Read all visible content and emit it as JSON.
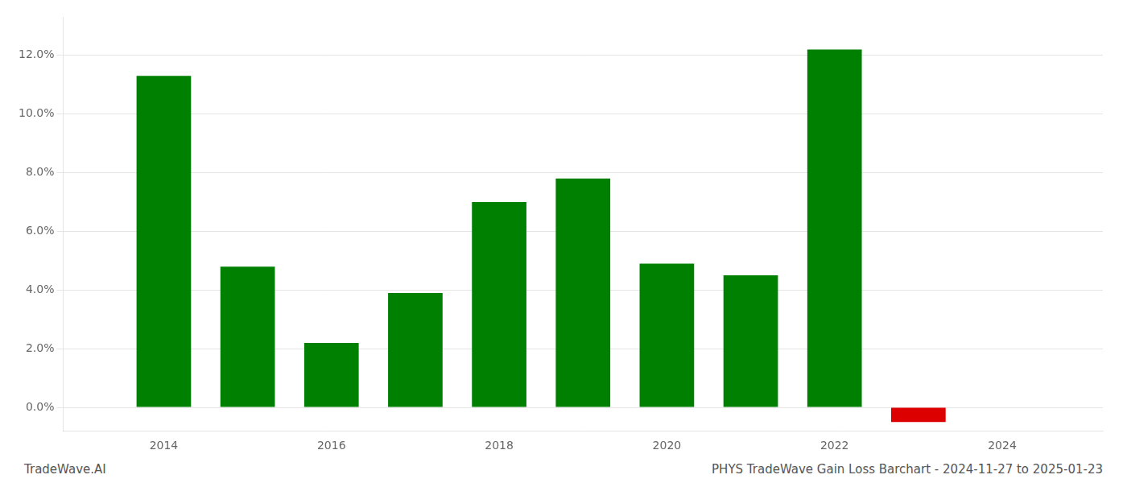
{
  "chart_data": {
    "type": "bar",
    "x": [
      2014,
      2015,
      2016,
      2017,
      2018,
      2019,
      2020,
      2021,
      2022,
      2023
    ],
    "values": [
      0.113,
      0.048,
      0.022,
      0.039,
      0.07,
      0.078,
      0.049,
      0.045,
      0.122,
      -0.005
    ],
    "colors": [
      "#008000",
      "#008000",
      "#008000",
      "#008000",
      "#008000",
      "#008000",
      "#008000",
      "#008000",
      "#008000",
      "#dd0000"
    ],
    "xlim": [
      2012.8,
      2025.2
    ],
    "xticks": [
      2014,
      2016,
      2018,
      2020,
      2022,
      2024
    ],
    "ylim": [
      -0.008,
      0.133
    ],
    "yticks": [
      {
        "value": 0.0,
        "label": "0.0%"
      },
      {
        "value": 0.02,
        "label": "2.0%"
      },
      {
        "value": 0.04,
        "label": "4.0%"
      },
      {
        "value": 0.06,
        "label": "6.0%"
      },
      {
        "value": 0.08,
        "label": "8.0%"
      },
      {
        "value": 0.1,
        "label": "10.0%"
      },
      {
        "value": 0.12,
        "label": "12.0%"
      }
    ],
    "grid": true,
    "annotations": [
      "TradeWave.AI",
      "PHYS TradeWave Gain Loss Barchart - 2024-11-27 to 2025-01-23"
    ]
  }
}
